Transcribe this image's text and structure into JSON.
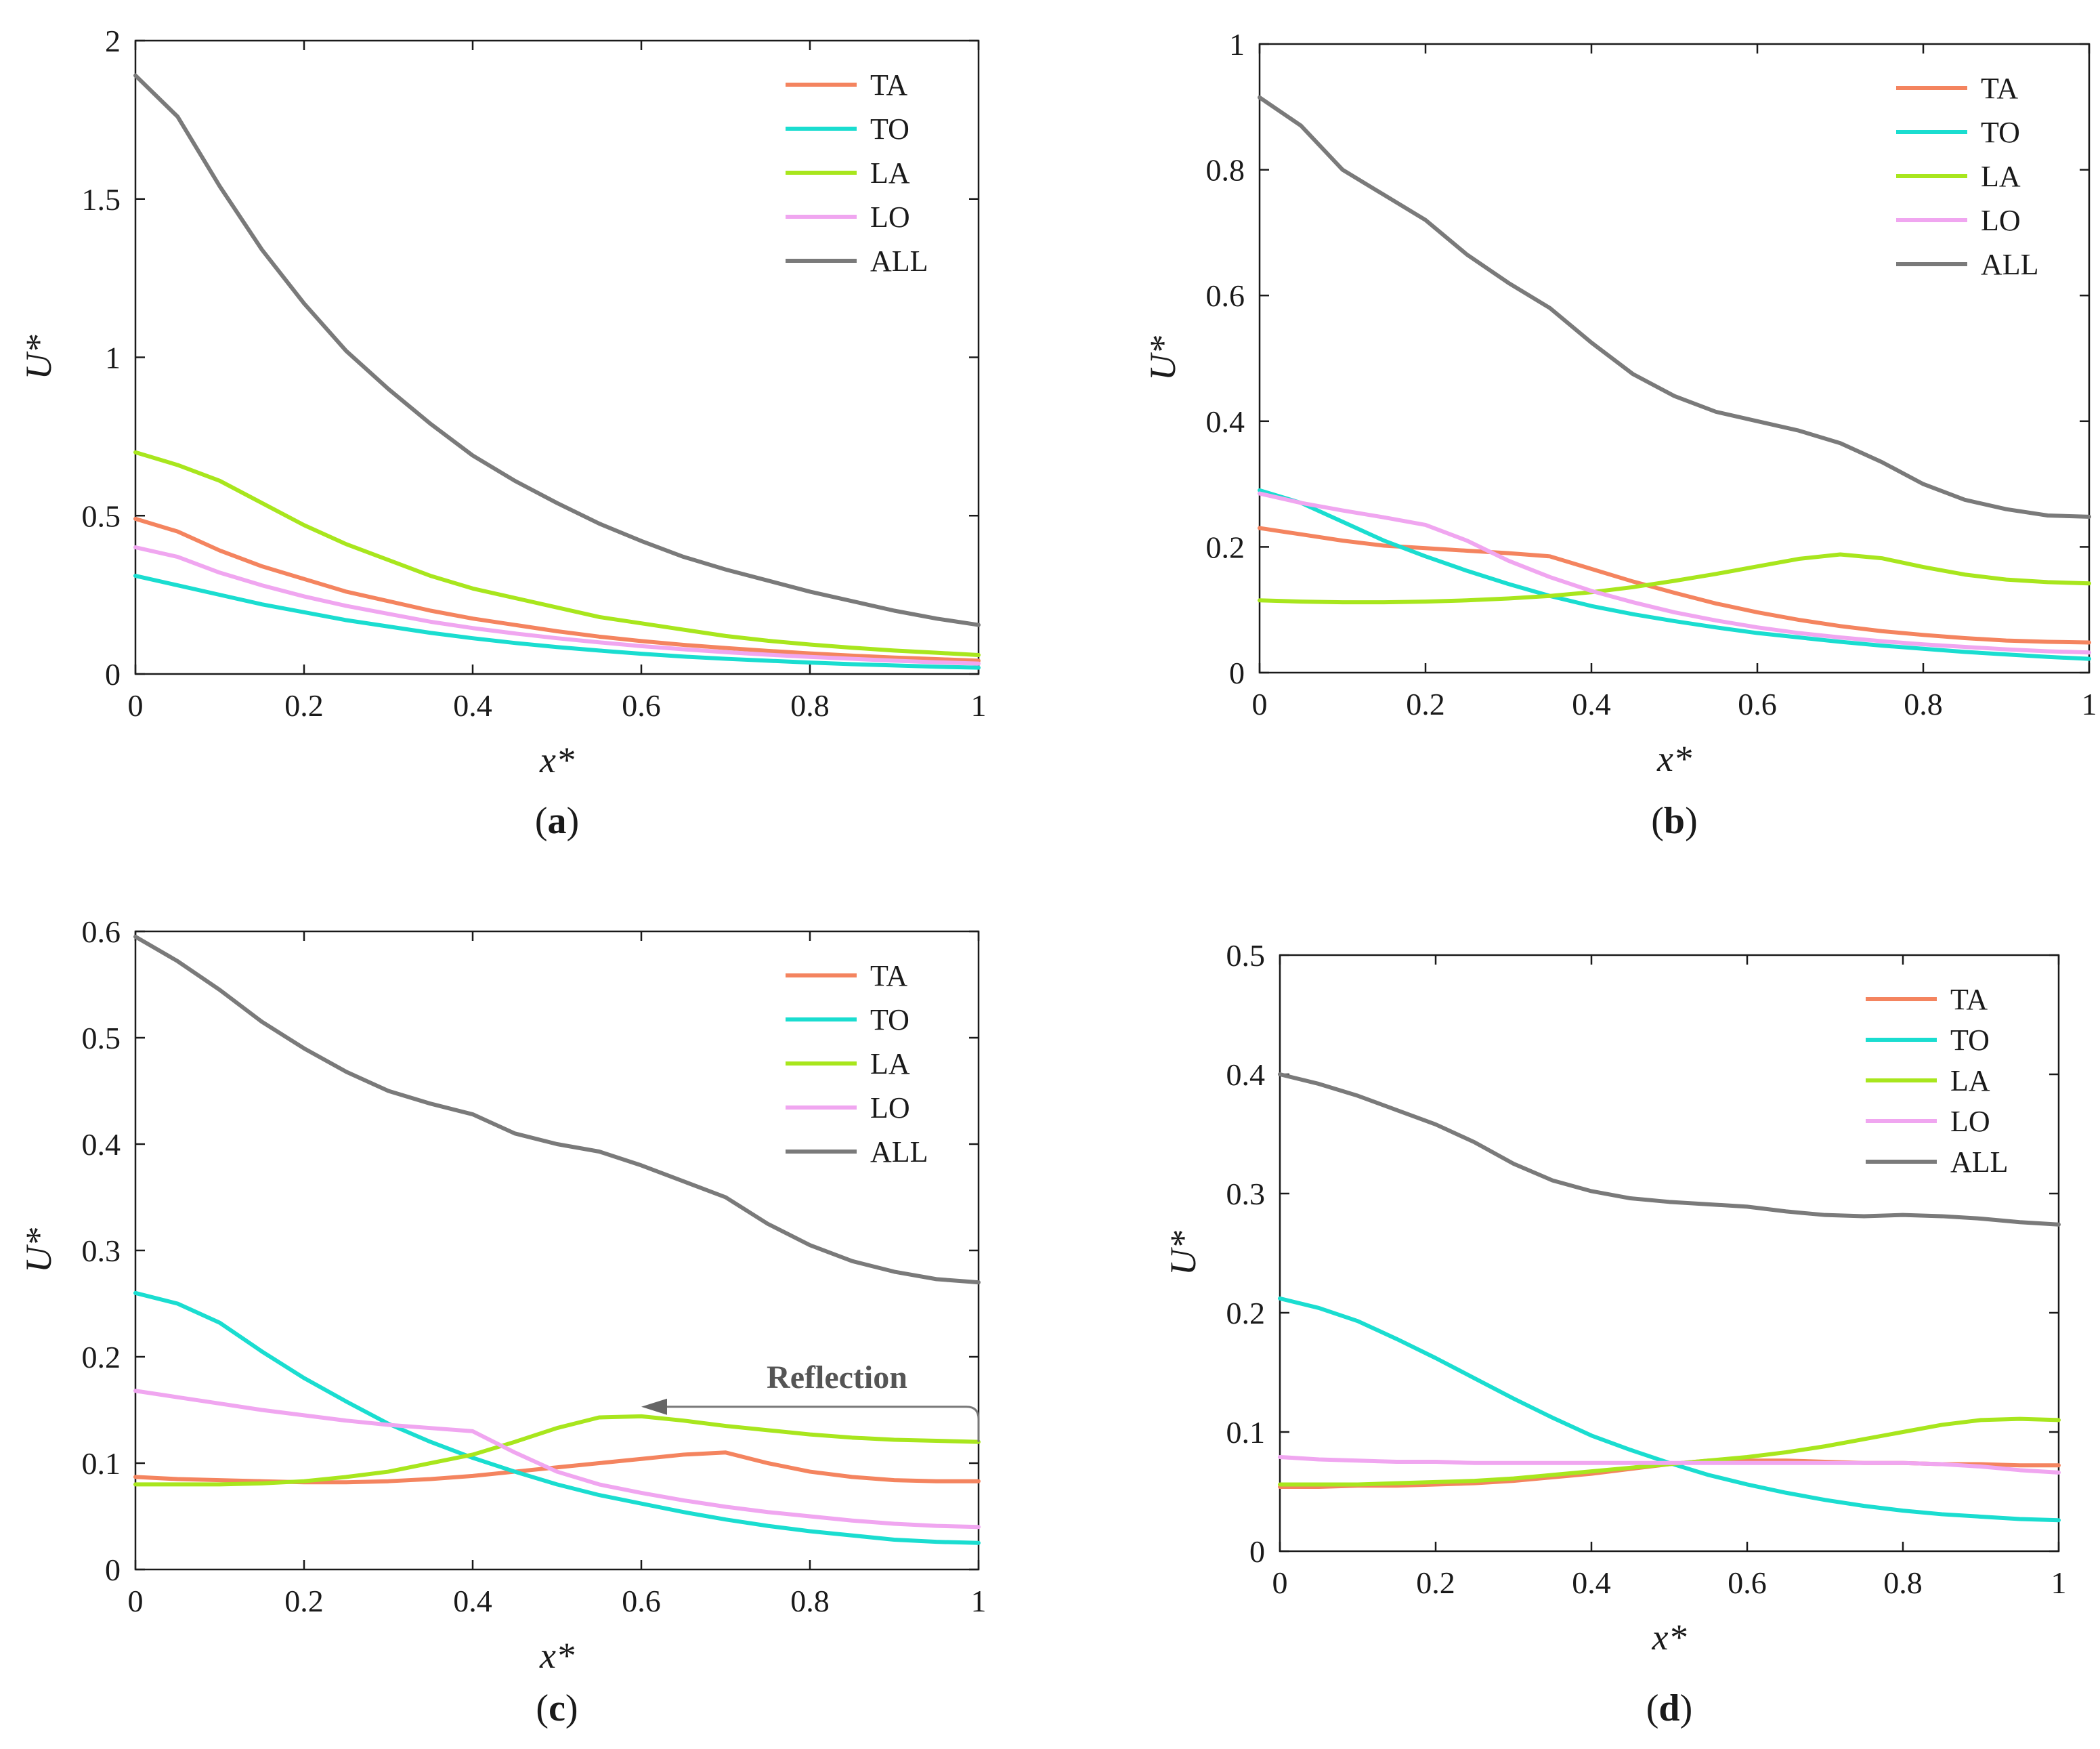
{
  "figure": {
    "panel_labels": [
      "a",
      "b",
      "c",
      "d"
    ]
  },
  "chart_data": [
    {
      "type": "line",
      "panel": "a",
      "xlabel": "x*",
      "ylabel": "U*",
      "xlim": [
        0,
        1
      ],
      "ylim": [
        0,
        2
      ],
      "xticks": [
        "0",
        "0.2",
        "0.4",
        "0.6",
        "0.8",
        "1"
      ],
      "yticks": [
        "0",
        "0.5",
        "1",
        "1.5",
        "2"
      ],
      "legend_position": "top-right",
      "x": [
        0,
        0.05,
        0.1,
        0.15,
        0.2,
        0.25,
        0.3,
        0.35,
        0.4,
        0.45,
        0.5,
        0.55,
        0.6,
        0.65,
        0.7,
        0.75,
        0.8,
        0.85,
        0.9,
        0.95,
        1
      ],
      "series": [
        {
          "name": "TA",
          "color": "#F4845F",
          "values": [
            0.49,
            0.45,
            0.39,
            0.34,
            0.3,
            0.26,
            0.23,
            0.2,
            0.175,
            0.155,
            0.135,
            0.118,
            0.104,
            0.092,
            0.082,
            0.073,
            0.065,
            0.058,
            0.052,
            0.047,
            0.042
          ]
        },
        {
          "name": "TO",
          "color": "#1ADDD0",
          "values": [
            0.31,
            0.28,
            0.25,
            0.22,
            0.195,
            0.17,
            0.15,
            0.13,
            0.113,
            0.098,
            0.085,
            0.074,
            0.064,
            0.055,
            0.048,
            0.042,
            0.036,
            0.031,
            0.027,
            0.023,
            0.02
          ]
        },
        {
          "name": "LA",
          "color": "#A8E61D",
          "values": [
            0.7,
            0.66,
            0.61,
            0.54,
            0.47,
            0.41,
            0.36,
            0.31,
            0.27,
            0.24,
            0.21,
            0.18,
            0.16,
            0.14,
            0.12,
            0.105,
            0.093,
            0.083,
            0.074,
            0.067,
            0.06
          ]
        },
        {
          "name": "LO",
          "color": "#F0A6F0",
          "values": [
            0.4,
            0.37,
            0.32,
            0.28,
            0.245,
            0.215,
            0.19,
            0.165,
            0.145,
            0.128,
            0.113,
            0.1,
            0.088,
            0.078,
            0.069,
            0.061,
            0.054,
            0.048,
            0.042,
            0.037,
            0.033
          ]
        },
        {
          "name": "ALL",
          "color": "#7A7A7A",
          "values": [
            1.89,
            1.76,
            1.54,
            1.34,
            1.17,
            1.02,
            0.9,
            0.79,
            0.69,
            0.61,
            0.54,
            0.475,
            0.42,
            0.37,
            0.33,
            0.295,
            0.26,
            0.23,
            0.2,
            0.175,
            0.155
          ]
        }
      ]
    },
    {
      "type": "line",
      "panel": "b",
      "xlabel": "x*",
      "ylabel": "U*",
      "xlim": [
        0,
        1
      ],
      "ylim": [
        0,
        1
      ],
      "xticks": [
        "0",
        "0.2",
        "0.4",
        "0.6",
        "0.8",
        "1"
      ],
      "yticks": [
        "0",
        "0.2",
        "0.4",
        "0.6",
        "0.8",
        "1"
      ],
      "legend_position": "top-right",
      "x": [
        0,
        0.05,
        0.1,
        0.15,
        0.2,
        0.25,
        0.3,
        0.35,
        0.4,
        0.45,
        0.5,
        0.55,
        0.6,
        0.65,
        0.7,
        0.75,
        0.8,
        0.85,
        0.9,
        0.95,
        1
      ],
      "series": [
        {
          "name": "TA",
          "color": "#F4845F",
          "values": [
            0.23,
            0.22,
            0.21,
            0.202,
            0.198,
            0.194,
            0.19,
            0.185,
            0.165,
            0.145,
            0.127,
            0.11,
            0.096,
            0.084,
            0.074,
            0.066,
            0.06,
            0.055,
            0.051,
            0.049,
            0.048
          ]
        },
        {
          "name": "TO",
          "color": "#1ADDD0",
          "values": [
            0.29,
            0.27,
            0.24,
            0.21,
            0.185,
            0.162,
            0.141,
            0.122,
            0.106,
            0.093,
            0.082,
            0.072,
            0.063,
            0.056,
            0.049,
            0.043,
            0.038,
            0.033,
            0.029,
            0.025,
            0.022
          ]
        },
        {
          "name": "LA",
          "color": "#A8E61D",
          "values": [
            0.115,
            0.113,
            0.112,
            0.112,
            0.113,
            0.115,
            0.118,
            0.122,
            0.128,
            0.136,
            0.146,
            0.157,
            0.169,
            0.181,
            0.188,
            0.182,
            0.168,
            0.156,
            0.148,
            0.144,
            0.142
          ]
        },
        {
          "name": "LO",
          "color": "#F0A6F0",
          "values": [
            0.285,
            0.27,
            0.258,
            0.247,
            0.235,
            0.21,
            0.178,
            0.152,
            0.13,
            0.112,
            0.096,
            0.083,
            0.072,
            0.063,
            0.056,
            0.05,
            0.045,
            0.041,
            0.037,
            0.034,
            0.032
          ]
        },
        {
          "name": "ALL",
          "color": "#7A7A7A",
          "values": [
            0.915,
            0.87,
            0.8,
            0.76,
            0.72,
            0.665,
            0.62,
            0.58,
            0.525,
            0.475,
            0.44,
            0.415,
            0.4,
            0.385,
            0.365,
            0.335,
            0.3,
            0.275,
            0.26,
            0.25,
            0.248
          ]
        }
      ]
    },
    {
      "type": "line",
      "panel": "c",
      "xlabel": "x*",
      "ylabel": "U*",
      "xlim": [
        0,
        1
      ],
      "ylim": [
        0,
        0.6
      ],
      "xticks": [
        "0",
        "0.2",
        "0.4",
        "0.6",
        "0.8",
        "1"
      ],
      "yticks": [
        "0",
        "0.1",
        "0.2",
        "0.3",
        "0.4",
        "0.5",
        "0.6"
      ],
      "legend_position": "top-right",
      "annotation": {
        "text": "Reflection",
        "arrow_from_x": 1.0,
        "arrow_to_x": 0.6,
        "arrow_y": 0.153
      },
      "x": [
        0,
        0.05,
        0.1,
        0.15,
        0.2,
        0.25,
        0.3,
        0.35,
        0.4,
        0.45,
        0.5,
        0.55,
        0.6,
        0.65,
        0.7,
        0.75,
        0.8,
        0.85,
        0.9,
        0.95,
        1
      ],
      "series": [
        {
          "name": "TA",
          "color": "#F4845F",
          "values": [
            0.087,
            0.085,
            0.084,
            0.083,
            0.082,
            0.082,
            0.083,
            0.085,
            0.088,
            0.092,
            0.096,
            0.1,
            0.104,
            0.108,
            0.11,
            0.1,
            0.092,
            0.087,
            0.084,
            0.083,
            0.083
          ]
        },
        {
          "name": "TO",
          "color": "#1ADDD0",
          "values": [
            0.26,
            0.25,
            0.232,
            0.205,
            0.18,
            0.158,
            0.137,
            0.12,
            0.105,
            0.092,
            0.08,
            0.07,
            0.062,
            0.054,
            0.047,
            0.041,
            0.036,
            0.032,
            0.028,
            0.026,
            0.025
          ]
        },
        {
          "name": "LA",
          "color": "#A8E61D",
          "values": [
            0.08,
            0.08,
            0.08,
            0.081,
            0.083,
            0.087,
            0.092,
            0.1,
            0.108,
            0.12,
            0.133,
            0.143,
            0.144,
            0.14,
            0.135,
            0.131,
            0.127,
            0.124,
            0.122,
            0.121,
            0.12
          ]
        },
        {
          "name": "LO",
          "color": "#F0A6F0",
          "values": [
            0.168,
            0.162,
            0.156,
            0.15,
            0.145,
            0.14,
            0.136,
            0.133,
            0.13,
            0.11,
            0.092,
            0.08,
            0.072,
            0.065,
            0.059,
            0.054,
            0.05,
            0.046,
            0.043,
            0.041,
            0.04
          ]
        },
        {
          "name": "ALL",
          "color": "#7A7A7A",
          "values": [
            0.595,
            0.572,
            0.545,
            0.515,
            0.49,
            0.468,
            0.45,
            0.438,
            0.428,
            0.41,
            0.4,
            0.393,
            0.38,
            0.365,
            0.35,
            0.325,
            0.305,
            0.29,
            0.28,
            0.273,
            0.27
          ]
        }
      ]
    },
    {
      "type": "line",
      "panel": "d",
      "xlabel": "x*",
      "ylabel": "U*",
      "xlim": [
        0,
        1
      ],
      "ylim": [
        0,
        0.5
      ],
      "xticks": [
        "0",
        "0.2",
        "0.4",
        "0.6",
        "0.8",
        "1"
      ],
      "yticks": [
        "0",
        "0.1",
        "0.2",
        "0.3",
        "0.4",
        "0.5"
      ],
      "legend_position": "top-right",
      "x": [
        0,
        0.05,
        0.1,
        0.15,
        0.2,
        0.25,
        0.3,
        0.35,
        0.4,
        0.45,
        0.5,
        0.55,
        0.6,
        0.65,
        0.7,
        0.75,
        0.8,
        0.85,
        0.9,
        0.95,
        1
      ],
      "series": [
        {
          "name": "TA",
          "color": "#F4845F",
          "values": [
            0.054,
            0.054,
            0.055,
            0.055,
            0.056,
            0.057,
            0.059,
            0.062,
            0.065,
            0.069,
            0.073,
            0.076,
            0.076,
            0.076,
            0.075,
            0.074,
            0.074,
            0.073,
            0.073,
            0.072,
            0.072
          ]
        },
        {
          "name": "TO",
          "color": "#1ADDD0",
          "values": [
            0.212,
            0.204,
            0.193,
            0.178,
            0.162,
            0.145,
            0.128,
            0.112,
            0.097,
            0.085,
            0.074,
            0.064,
            0.056,
            0.049,
            0.043,
            0.038,
            0.034,
            0.031,
            0.029,
            0.027,
            0.026
          ]
        },
        {
          "name": "LA",
          "color": "#A8E61D",
          "values": [
            0.056,
            0.056,
            0.056,
            0.057,
            0.058,
            0.059,
            0.061,
            0.064,
            0.067,
            0.07,
            0.073,
            0.076,
            0.079,
            0.083,
            0.088,
            0.094,
            0.1,
            0.106,
            0.11,
            0.111,
            0.11
          ]
        },
        {
          "name": "LO",
          "color": "#F0A6F0",
          "values": [
            0.079,
            0.077,
            0.076,
            0.075,
            0.075,
            0.074,
            0.074,
            0.074,
            0.074,
            0.074,
            0.074,
            0.074,
            0.074,
            0.074,
            0.074,
            0.074,
            0.074,
            0.073,
            0.071,
            0.068,
            0.066
          ]
        },
        {
          "name": "ALL",
          "color": "#7A7A7A",
          "values": [
            0.4,
            0.392,
            0.382,
            0.37,
            0.358,
            0.343,
            0.325,
            0.311,
            0.302,
            0.296,
            0.293,
            0.291,
            0.289,
            0.285,
            0.282,
            0.281,
            0.282,
            0.281,
            0.279,
            0.276,
            0.274
          ]
        }
      ]
    }
  ]
}
